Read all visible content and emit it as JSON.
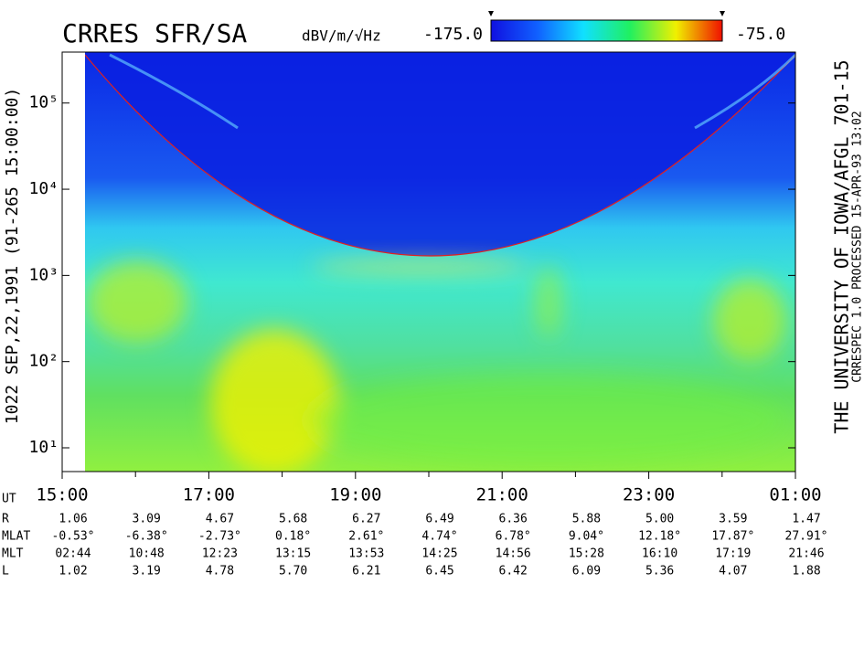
{
  "chart_data": {
    "type": "spectrogram",
    "title": "CRRES SFR/SA",
    "left_caption": "1022   SEP,22,1991   (91-265 15:00:00)",
    "right_caption": "THE UNIVERSITY OF IOWA/AFGL 701-15",
    "right_subcaption": "CRRESPEC 1.0   PROCESSED 15-APR-93   13:02",
    "colorbar": {
      "label": "dBV/m/√Hz",
      "colors": [
        "#1010e0",
        "#1060ff",
        "#10e0ff",
        "#20f060",
        "#f0f000",
        "#f01000"
      ],
      "ticks": [
        {
          "value": -175,
          "label": "-175.0"
        },
        {
          "value": -75,
          "label": "-75.0"
        }
      ]
    },
    "y_scale": "log",
    "ylim": [
      5.3,
      390000
    ],
    "yticks": [
      {
        "value": 10,
        "label": "10¹"
      },
      {
        "value": 100,
        "label": "10²"
      },
      {
        "value": 1000,
        "label": "10³"
      },
      {
        "value": 10000,
        "label": "10⁴"
      },
      {
        "value": 100000,
        "label": "10⁵"
      }
    ],
    "xlim": [
      15,
      25
    ],
    "xticks": [
      {
        "value": 15,
        "label": "15:00"
      },
      {
        "value": 17,
        "label": "17:00"
      },
      {
        "value": 19,
        "label": "19:00"
      },
      {
        "value": 21,
        "label": "21:00"
      },
      {
        "value": 23,
        "label": "23:00"
      },
      {
        "value": 25,
        "label": "01:00"
      }
    ],
    "xminor_ticks": [
      16,
      18,
      20,
      22,
      24
    ],
    "ephemeris": {
      "x_label": "UT",
      "rows": [
        {
          "label": "R",
          "values": [
            "1.06",
            "3.09",
            "4.67",
            "5.68",
            "6.27",
            "6.49",
            "6.36",
            "5.88",
            "5.00",
            "3.59",
            "1.47"
          ]
        },
        {
          "label": "MLAT",
          "values": [
            "-0.53°",
            "-6.38°",
            "-2.73°",
            "0.18°",
            "2.61°",
            "4.74°",
            "6.78°",
            "9.04°",
            "12.18°",
            "17.87°",
            "27.91°"
          ]
        },
        {
          "label": "MLT",
          "values": [
            "02:44",
            "10:48",
            "12:23",
            "13:15",
            "13:53",
            "14:25",
            "14:56",
            "15:28",
            "16:10",
            "17:19",
            "21:46"
          ]
        },
        {
          "label": "L",
          "values": [
            "1.02",
            "3.19",
            "4.78",
            "5.70",
            "6.21",
            "6.45",
            "6.42",
            "6.09",
            "5.36",
            "4.07",
            "1.88"
          ]
        }
      ]
    }
  }
}
